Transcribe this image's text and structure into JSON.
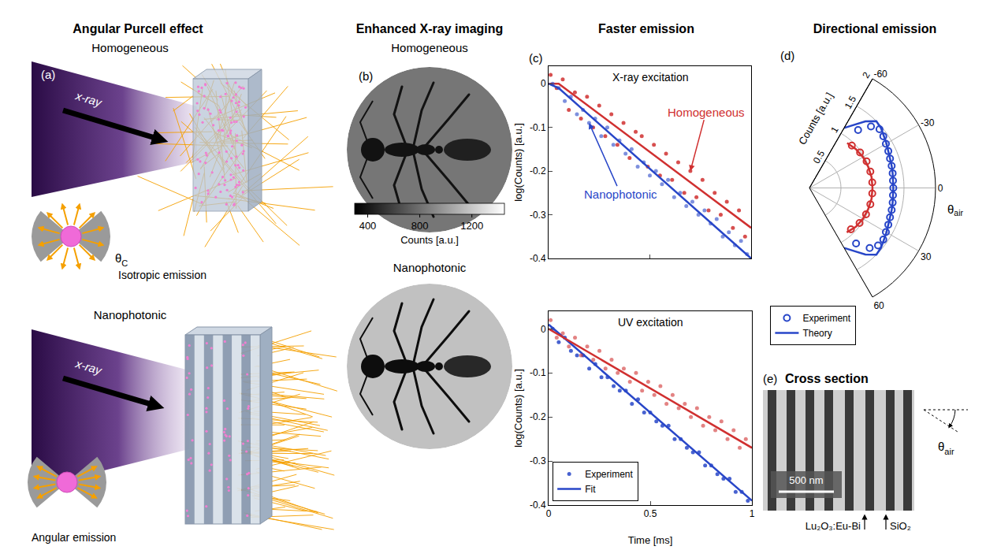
{
  "headers": [
    "Angular Purcell effect",
    "Enhanced X-ray imaging",
    "Faster emission",
    "Directional emission"
  ],
  "panel_a": {
    "letter": "(a)",
    "homogeneous": {
      "title": "Homogeneous",
      "beam_label": "x-ray",
      "inset_label": "Isotropic emission",
      "angle_label": {
        "base": "θ",
        "sub": "C"
      }
    },
    "nanophotonic": {
      "title": "Nanophotonic",
      "beam_label": "x-ray",
      "inset_label": "Angular emission"
    }
  },
  "panel_b": {
    "letter": "(b)",
    "images": [
      {
        "title": "Homogeneous",
        "background_counts": 830,
        "object_counts": 380
      },
      {
        "title": "Nanophotonic",
        "background_counts": 1170,
        "object_counts": 360
      }
    ],
    "colorbar": {
      "title": "Counts [a.u.]",
      "range": [
        300,
        1450
      ],
      "ticks": [
        400,
        800,
        1200
      ]
    }
  },
  "chart_data": [
    {
      "type": "scatter",
      "letter": "(c)",
      "title": "X-ray excitation",
      "ylabel": "log(Counts) [a.u.]",
      "xlim": [
        0,
        1
      ],
      "ylim": [
        -0.4,
        0.04
      ],
      "xticks": [
        0,
        0.5,
        1
      ],
      "yticks": [
        0,
        -0.1,
        -0.2,
        -0.3,
        -0.4
      ],
      "tick_labels": "y",
      "series": [
        {
          "name": "Homogeneous",
          "color": "#d03030",
          "points": {
            "x": [
              0.01,
              0.04,
              0.07,
              0.1,
              0.13,
              0.16,
              0.19,
              0.22,
              0.25,
              0.28,
              0.31,
              0.34,
              0.37,
              0.4,
              0.43,
              0.46,
              0.49,
              0.52,
              0.55,
              0.58,
              0.61,
              0.64,
              0.67,
              0.7,
              0.73,
              0.76,
              0.79,
              0.82,
              0.85,
              0.88,
              0.91,
              0.94,
              0.97
            ],
            "y": [
              0.02,
              -0.01,
              0.01,
              -0.06,
              -0.02,
              -0.08,
              -0.03,
              -0.1,
              -0.05,
              -0.12,
              -0.07,
              -0.14,
              -0.09,
              -0.17,
              -0.11,
              -0.12,
              -0.19,
              -0.14,
              -0.21,
              -0.16,
              -0.22,
              -0.18,
              -0.25,
              -0.2,
              -0.26,
              -0.22,
              -0.29,
              -0.25,
              -0.3,
              -0.27,
              -0.33,
              -0.29,
              -0.35
            ]
          },
          "fit": {
            "x": [
              0,
              0.05,
              1
            ],
            "y": [
              0,
              0,
              -0.33
            ]
          }
        },
        {
          "name": "Nanophotonic",
          "color": "#2846c8",
          "points": {
            "x": [
              0.02,
              0.05,
              0.08,
              0.11,
              0.14,
              0.17,
              0.2,
              0.23,
              0.26,
              0.29,
              0.32,
              0.35,
              0.38,
              0.41,
              0.44,
              0.47,
              0.5,
              0.53,
              0.56,
              0.59,
              0.62,
              0.65,
              0.68,
              0.71,
              0.74,
              0.77,
              0.8,
              0.83,
              0.86,
              0.89,
              0.92,
              0.95,
              0.98
            ],
            "y": [
              0,
              -0.01,
              -0.04,
              -0.03,
              -0.07,
              -0.06,
              -0.09,
              -0.08,
              -0.12,
              -0.1,
              -0.14,
              -0.13,
              -0.16,
              -0.15,
              -0.19,
              -0.18,
              -0.21,
              -0.2,
              -0.23,
              -0.22,
              -0.26,
              -0.25,
              -0.28,
              -0.27,
              -0.3,
              -0.29,
              -0.32,
              -0.31,
              -0.35,
              -0.34,
              -0.37,
              -0.36,
              -0.39
            ]
          },
          "fit": {
            "x": [
              0,
              0.05,
              1
            ],
            "y": [
              0,
              -0.01,
              -0.4
            ]
          }
        }
      ]
    },
    {
      "type": "scatter",
      "title": "UV excitation",
      "xlabel": "Time [ms]",
      "ylabel": "log(Counts) [a.u.]",
      "xlim": [
        0,
        1
      ],
      "ylim": [
        -0.4,
        0.04
      ],
      "xticks": [
        0,
        0.5,
        1
      ],
      "yticks": [
        0,
        -0.1,
        -0.2,
        -0.3,
        -0.4
      ],
      "legend": "lower left",
      "legend_entries": [
        "Experiment",
        "Fit"
      ],
      "series": [
        {
          "color": "#2846c8",
          "points": {
            "x": [
              0.02,
              0.05,
              0.08,
              0.11,
              0.14,
              0.17,
              0.2,
              0.23,
              0.26,
              0.29,
              0.32,
              0.35,
              0.38,
              0.41,
              0.44,
              0.47,
              0.5,
              0.53,
              0.56,
              0.59,
              0.62,
              0.65,
              0.68,
              0.71,
              0.74,
              0.77,
              0.8,
              0.83,
              0.86,
              0.89,
              0.92,
              0.95,
              0.98
            ],
            "y": [
              0,
              -0.03,
              -0.02,
              -0.05,
              -0.06,
              -0.06,
              -0.09,
              -0.08,
              -0.11,
              -0.11,
              -0.13,
              -0.14,
              -0.14,
              -0.17,
              -0.16,
              -0.19,
              -0.19,
              -0.21,
              -0.22,
              -0.22,
              -0.25,
              -0.25,
              -0.27,
              -0.28,
              -0.28,
              -0.31,
              -0.31,
              -0.33,
              -0.34,
              -0.34,
              -0.37,
              -0.37,
              -0.39
            ]
          },
          "fit": {
            "x": [
              0,
              1
            ],
            "y": [
              0.01,
              -0.39
            ]
          }
        },
        {
          "color": "#d03030",
          "points": {
            "x": [
              0.01,
              0.04,
              0.07,
              0.1,
              0.13,
              0.16,
              0.19,
              0.22,
              0.25,
              0.28,
              0.31,
              0.34,
              0.37,
              0.4,
              0.43,
              0.46,
              0.49,
              0.52,
              0.55,
              0.58,
              0.61,
              0.64,
              0.67,
              0.7,
              0.73,
              0.76,
              0.79,
              0.82,
              0.85,
              0.88,
              0.91,
              0.94,
              0.97
            ],
            "y": [
              0.02,
              -0.02,
              -0.01,
              -0.04,
              -0.02,
              -0.06,
              -0.04,
              -0.07,
              -0.05,
              -0.09,
              -0.07,
              -0.1,
              -0.09,
              -0.12,
              -0.1,
              -0.14,
              -0.12,
              -0.15,
              -0.13,
              -0.17,
              -0.15,
              -0.18,
              -0.17,
              -0.2,
              -0.18,
              -0.22,
              -0.2,
              -0.23,
              -0.21,
              -0.25,
              -0.23,
              -0.27,
              -0.25
            ]
          },
          "fit": {
            "x": [
              0,
              1
            ],
            "y": [
              0,
              -0.27
            ]
          }
        }
      ]
    },
    {
      "type": "polar",
      "letter": "(d)",
      "radial_label": "Counts [a.u.]",
      "angle_label": {
        "base": "θ",
        "sub": "air"
      },
      "thetalim": [
        -60,
        60
      ],
      "thetaticks": [
        -60,
        -30,
        0,
        30,
        60
      ],
      "rlim": [
        0,
        2
      ],
      "rticks": [
        0.5,
        1,
        1.5,
        2
      ],
      "legend": "below",
      "legend_entries": [
        "Experiment",
        "Theory"
      ],
      "series": [
        {
          "color": "#2846c8",
          "experiment": {
            "theta": [
              -50,
              -45,
              -40,
              -35,
              -30,
              -25,
              -20,
              -15,
              -10,
              -5,
              0,
              5,
              10,
              15,
              20,
              25,
              30,
              35,
              40,
              45,
              50
            ],
            "r": [
              1.2,
              1.38,
              1.45,
              1.43,
              1.4,
              1.38,
              1.36,
              1.35,
              1.34,
              1.33,
              1.33,
              1.33,
              1.34,
              1.35,
              1.36,
              1.38,
              1.4,
              1.43,
              1.42,
              1.35,
              1.15
            ]
          },
          "theory": {
            "theta": [
              -60,
              -55,
              -50,
              -45,
              -40,
              -35,
              -30,
              -25,
              -20,
              -15,
              -10,
              -5,
              0,
              5,
              10,
              15,
              20,
              25,
              30,
              35,
              40,
              45,
              50,
              55,
              60
            ],
            "r": [
              1.1,
              1.22,
              1.38,
              1.5,
              1.48,
              1.44,
              1.41,
              1.38,
              1.36,
              1.35,
              1.34,
              1.33,
              1.33,
              1.33,
              1.34,
              1.35,
              1.36,
              1.38,
              1.41,
              1.44,
              1.48,
              1.5,
              1.38,
              1.22,
              1.1
            ]
          }
        },
        {
          "color": "#d03030",
          "experiment": {
            "theta": [
              -45,
              -35,
              -25,
              -15,
              -5,
              5,
              15,
              25,
              35,
              45
            ],
            "r": [
              0.95,
              0.98,
              1.0,
              1.0,
              1.0,
              1.0,
              1.0,
              0.99,
              0.97,
              0.93
            ]
          },
          "theory": {
            "theta": [
              -50,
              -40,
              -30,
              -20,
              -10,
              0,
              10,
              20,
              30,
              40,
              50
            ],
            "r": [
              0.93,
              0.96,
              0.98,
              0.99,
              1.0,
              1.0,
              1.0,
              0.99,
              0.98,
              0.96,
              0.92
            ]
          }
        }
      ]
    }
  ],
  "panel_e": {
    "letter": "(e)",
    "title": "Cross section",
    "scale_bar": "500 nm",
    "labels": [
      "Lu₂O₃:Eu-Bi",
      "SiO₂"
    ],
    "angle_label": {
      "base": "θ",
      "sub": "air"
    }
  }
}
